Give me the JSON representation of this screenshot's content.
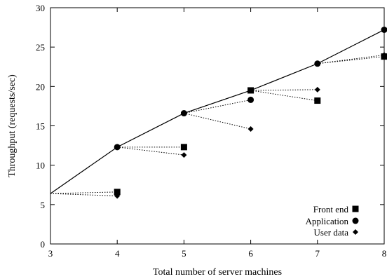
{
  "chart_data": {
    "type": "line",
    "xlabel": "Total number of server machines",
    "ylabel": "Throughput (requests/sec)",
    "xlim": [
      3,
      8
    ],
    "ylim": [
      0,
      30
    ],
    "xticks": [
      "3",
      "4",
      "5",
      "6",
      "7",
      "8"
    ],
    "yticks": [
      "0",
      "5",
      "10",
      "15",
      "20",
      "25",
      "30"
    ],
    "grid": false,
    "legend_position": "bottom-right",
    "main_line": {
      "x": [
        3,
        4,
        5,
        6,
        7,
        8
      ],
      "y": [
        6.4,
        12.3,
        16.6,
        19.5,
        22.9,
        27.2
      ]
    },
    "series": [
      {
        "name": "Front end",
        "marker": "square",
        "x": [
          4,
          5,
          6,
          7,
          8
        ],
        "y": [
          6.6,
          12.3,
          19.5,
          18.2,
          23.8
        ]
      },
      {
        "name": "Application",
        "marker": "circle",
        "x": [
          4,
          5,
          6,
          7,
          8
        ],
        "y": [
          12.3,
          16.6,
          18.3,
          22.9,
          27.2
        ]
      },
      {
        "name": "User data",
        "marker": "diamond",
        "x": [
          4,
          5,
          6,
          7,
          8
        ],
        "y": [
          6.1,
          11.3,
          14.6,
          19.6,
          24.0
        ]
      }
    ]
  }
}
